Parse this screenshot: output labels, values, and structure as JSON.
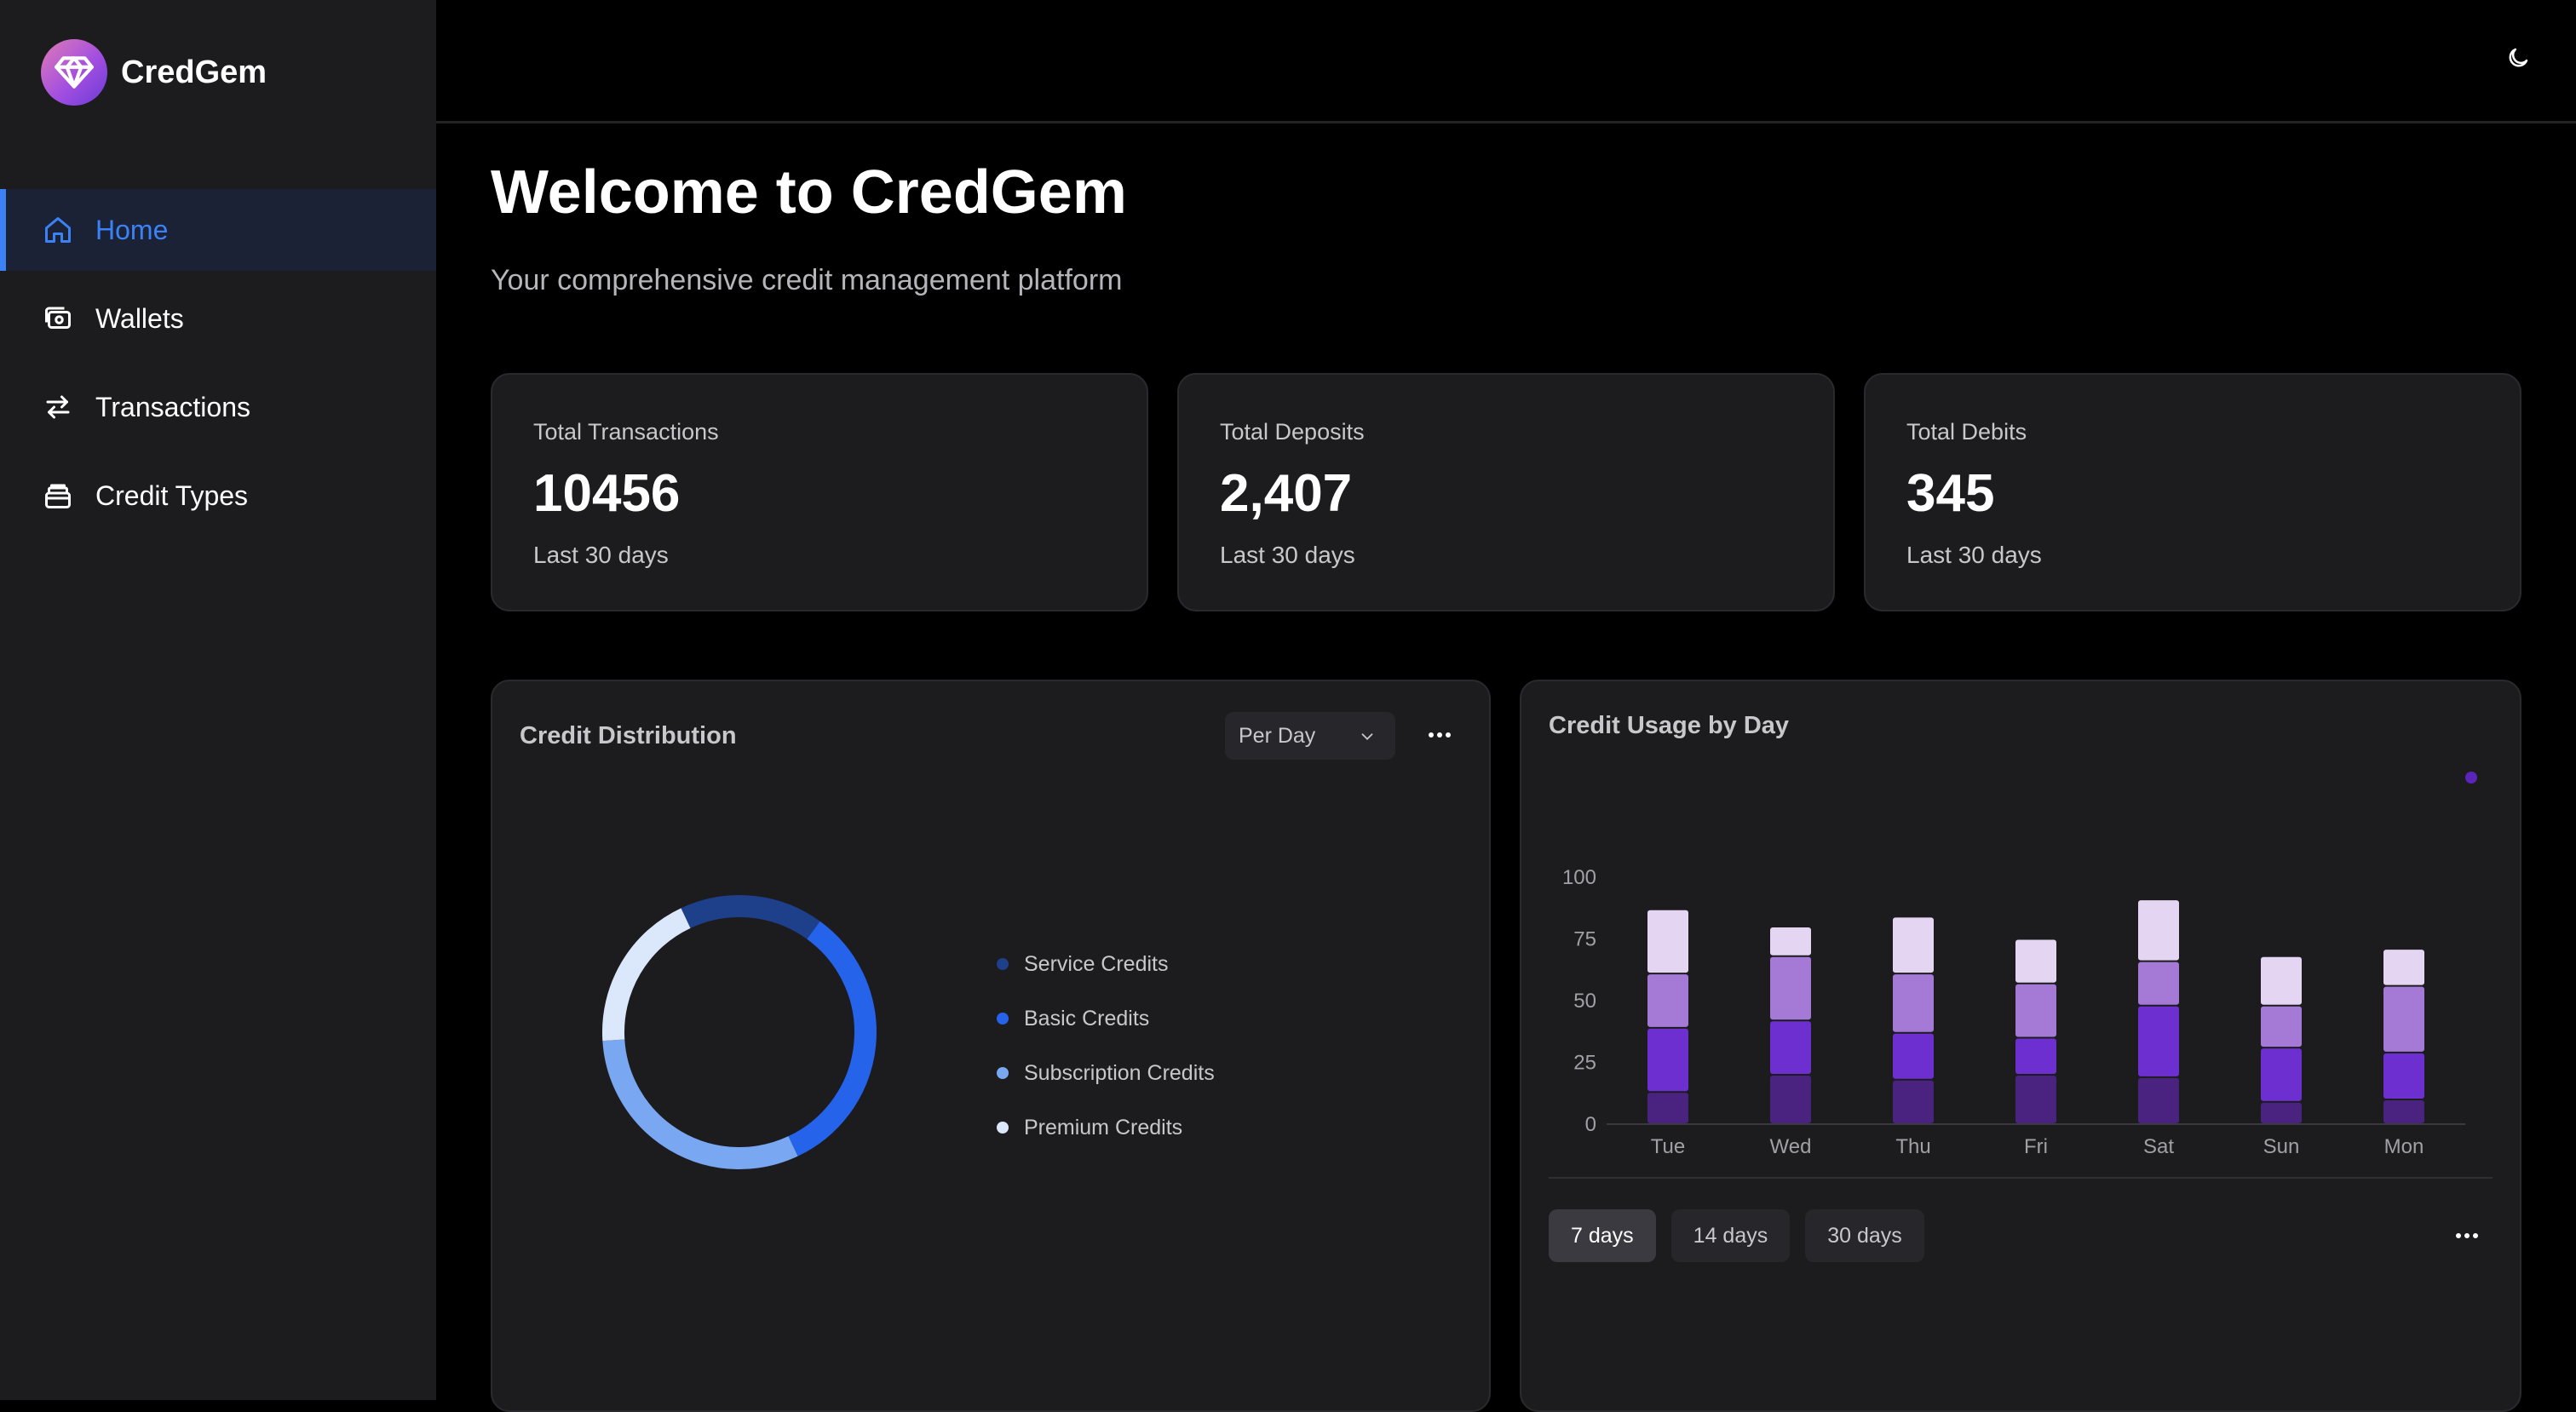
{
  "app": {
    "name": "CredGem"
  },
  "sidebar": {
    "items": [
      {
        "label": "Home",
        "icon": "home-icon",
        "active": true
      },
      {
        "label": "Wallets",
        "icon": "wallet-icon",
        "active": false
      },
      {
        "label": "Transactions",
        "icon": "arrows-exchange-icon",
        "active": false
      },
      {
        "label": "Credit Types",
        "icon": "stack-icon",
        "active": false
      }
    ]
  },
  "header": {
    "theme_toggle_icon": "moon-icon"
  },
  "main": {
    "title": "Welcome to CredGem",
    "subtitle": "Your comprehensive credit management platform"
  },
  "stats": [
    {
      "label": "Total Transactions",
      "value": "10456",
      "sub": "Last 30 days"
    },
    {
      "label": "Total Deposits",
      "value": "2,407",
      "sub": "Last 30 days"
    },
    {
      "label": "Total Debits",
      "value": "345",
      "sub": "Last 30 days"
    }
  ],
  "distribution": {
    "title": "Credit Distribution",
    "select_value": "Per Day"
  },
  "usage": {
    "title": "Credit Usage by Day",
    "ranges": [
      "7 days",
      "14 days",
      "30 days"
    ],
    "active_range": "7 days"
  },
  "colors": {
    "accent": "#3b82f6",
    "service": "#1e3f8a",
    "basic": "#2563eb",
    "subscription": "#7aa7f2",
    "premium": "#dbe7fb",
    "purple_dark": "#4a2380",
    "purple": "#6d2fd0",
    "purple_mid": "#a47ad6",
    "purple_light": "#e4d6f2"
  },
  "chart_data": [
    {
      "type": "pie",
      "title": "Credit Distribution",
      "categories": [
        "Service Credits",
        "Basic Credits",
        "Subscription Credits",
        "Premium Credits"
      ],
      "values": [
        17,
        33,
        31,
        19
      ],
      "colors": [
        "#1e3f8a",
        "#2563eb",
        "#7aa7f2",
        "#dbe7fb"
      ]
    },
    {
      "type": "bar",
      "title": "Credit Usage by Day",
      "stacked": true,
      "categories": [
        "Tue",
        "Wed",
        "Thu",
        "Fri",
        "Sat",
        "Sun",
        "Mon"
      ],
      "ylim": [
        0,
        100
      ],
      "yticks": [
        0,
        25,
        50,
        75,
        100
      ],
      "series": [
        {
          "values": [
            13,
            20,
            18,
            20,
            19,
            9,
            10
          ],
          "color": "#4a2380"
        },
        {
          "values": [
            26,
            22,
            19,
            15,
            29,
            22,
            19
          ],
          "color": "#6d2fd0"
        },
        {
          "values": [
            22,
            26,
            24,
            22,
            18,
            17,
            27
          ],
          "color": "#a47ad6"
        },
        {
          "values": [
            26,
            12,
            23,
            18,
            25,
            20,
            15
          ],
          "color": "#e4d6f2"
        }
      ]
    }
  ]
}
